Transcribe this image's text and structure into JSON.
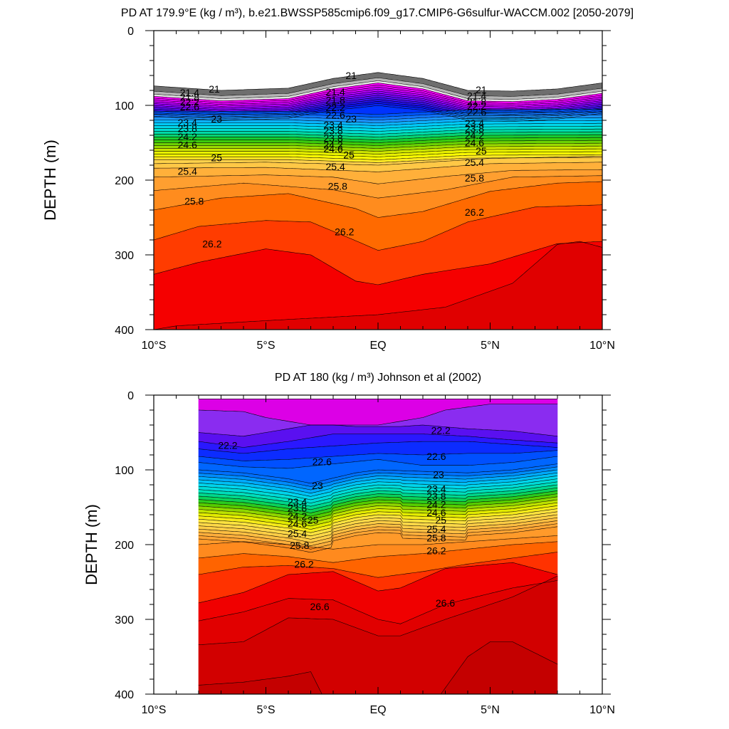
{
  "chart_data": [
    {
      "type": "contour",
      "title": "PD AT 179.9°E (kg / m³), b.e21.BWSSP585cmip6.f09_g17.CMIP6-G6sulfur-WACCM.002 [2050-2079]",
      "ylabel": "DEPTH (m)",
      "xlabel": "",
      "x_tick_labels": [
        "10°S",
        "5°S",
        "EQ",
        "5°N",
        "10°N"
      ],
      "x_ticks": [
        -10,
        -5,
        0,
        5,
        10
      ],
      "y_tick_labels": [
        "0",
        "100",
        "200",
        "300",
        "400"
      ],
      "y_ticks": [
        0,
        100,
        200,
        300,
        400
      ],
      "xlim": [
        -10,
        10
      ],
      "ylim": [
        0,
        400
      ],
      "y_inverted": true,
      "contour_interval": 0.2,
      "levels": [
        21.0,
        21.4,
        21.8,
        22.2,
        22.6,
        23.0,
        23.4,
        23.8,
        24.2,
        24.6,
        25.0,
        25.4,
        25.8,
        26.2
      ],
      "contour_labels": [
        {
          "text": "21",
          "lat": -7.3,
          "depth": 78
        },
        {
          "text": "21",
          "lat": -1.2,
          "depth": 60
        },
        {
          "text": "21",
          "lat": 4.6,
          "depth": 79
        },
        {
          "text": "21.4",
          "lat": -8.4,
          "depth": 83
        },
        {
          "text": "21.8",
          "lat": -8.4,
          "depth": 89
        },
        {
          "text": "22.2",
          "lat": -8.4,
          "depth": 95
        },
        {
          "text": "22.6",
          "lat": -8.4,
          "depth": 102
        },
        {
          "text": "21.4",
          "lat": -1.9,
          "depth": 82
        },
        {
          "text": "21.8",
          "lat": -1.9,
          "depth": 93
        },
        {
          "text": "22.2",
          "lat": -1.9,
          "depth": 103
        },
        {
          "text": "22.6",
          "lat": -1.9,
          "depth": 113
        },
        {
          "text": "23",
          "lat": -1.2,
          "depth": 118
        },
        {
          "text": "21.4",
          "lat": 4.4,
          "depth": 87
        },
        {
          "text": "21.8",
          "lat": 4.4,
          "depth": 95
        },
        {
          "text": "22.2",
          "lat": 4.4,
          "depth": 101
        },
        {
          "text": "22.6",
          "lat": 4.4,
          "depth": 109
        },
        {
          "text": "23",
          "lat": -7.2,
          "depth": 118
        },
        {
          "text": "23.4",
          "lat": -8.5,
          "depth": 123
        },
        {
          "text": "23.8",
          "lat": -8.5,
          "depth": 131
        },
        {
          "text": "24.2",
          "lat": -8.5,
          "depth": 142
        },
        {
          "text": "24.6",
          "lat": -8.5,
          "depth": 153
        },
        {
          "text": "23.4",
          "lat": -2.0,
          "depth": 126
        },
        {
          "text": "23.8",
          "lat": -2.0,
          "depth": 134
        },
        {
          "text": "23.8",
          "lat": -2.0,
          "depth": 144
        },
        {
          "text": "24.2",
          "lat": -2.0,
          "depth": 153
        },
        {
          "text": "24.6",
          "lat": -2.0,
          "depth": 158
        },
        {
          "text": "23.4",
          "lat": 4.3,
          "depth": 124
        },
        {
          "text": "23.8",
          "lat": 4.3,
          "depth": 131
        },
        {
          "text": "24.2",
          "lat": 4.3,
          "depth": 140
        },
        {
          "text": "24.6",
          "lat": 4.3,
          "depth": 150
        },
        {
          "text": "25",
          "lat": -7.2,
          "depth": 170
        },
        {
          "text": "25",
          "lat": -1.3,
          "depth": 166
        },
        {
          "text": "25",
          "lat": 4.6,
          "depth": 161
        },
        {
          "text": "25.4",
          "lat": -8.5,
          "depth": 188
        },
        {
          "text": "25.4",
          "lat": -1.9,
          "depth": 182
        },
        {
          "text": "25.4",
          "lat": 4.3,
          "depth": 176
        },
        {
          "text": "25.8",
          "lat": -8.2,
          "depth": 228
        },
        {
          "text": "25.8",
          "lat": -1.8,
          "depth": 208
        },
        {
          "text": "25.8",
          "lat": 4.3,
          "depth": 197
        },
        {
          "text": "26.2",
          "lat": -7.4,
          "depth": 285
        },
        {
          "text": "26.2",
          "lat": -1.5,
          "depth": 269
        },
        {
          "text": "26.2",
          "lat": 4.3,
          "depth": 243
        }
      ]
    },
    {
      "type": "contour",
      "title": "PD AT 180 (kg / m³) Johnson et al (2002)",
      "ylabel": "DEPTH (m)",
      "xlabel": "",
      "x_tick_labels": [
        "10°S",
        "5°S",
        "EQ",
        "5°N",
        "10°N"
      ],
      "x_ticks": [
        -10,
        -5,
        0,
        5,
        10
      ],
      "y_tick_labels": [
        "0",
        "100",
        "200",
        "300",
        "400"
      ],
      "y_ticks": [
        0,
        100,
        200,
        300,
        400
      ],
      "xlim": [
        -10,
        10
      ],
      "ylim": [
        0,
        400
      ],
      "y_inverted": true,
      "data_extent_lat": [
        -8,
        8
      ],
      "data_extent_depth": [
        5,
        400
      ],
      "contour_interval": 0.2,
      "levels": [
        22.2,
        22.6,
        23.0,
        23.4,
        23.8,
        24.2,
        24.6,
        25.0,
        25.4,
        25.8,
        26.2,
        26.6
      ],
      "contour_labels": [
        {
          "text": "22.2",
          "lat": -6.7,
          "depth": 67
        },
        {
          "text": "22.6",
          "lat": -2.5,
          "depth": 89
        },
        {
          "text": "23",
          "lat": -2.7,
          "depth": 121
        },
        {
          "text": "23.4",
          "lat": -3.6,
          "depth": 143
        },
        {
          "text": "23.8",
          "lat": -3.6,
          "depth": 151
        },
        {
          "text": "24.2",
          "lat": -3.6,
          "depth": 162
        },
        {
          "text": "24.6",
          "lat": -3.6,
          "depth": 172
        },
        {
          "text": "25",
          "lat": -2.9,
          "depth": 167
        },
        {
          "text": "25.4",
          "lat": -3.6,
          "depth": 185
        },
        {
          "text": "25.8",
          "lat": -3.5,
          "depth": 201
        },
        {
          "text": "26.2",
          "lat": -3.3,
          "depth": 226
        },
        {
          "text": "22.2",
          "lat": 2.8,
          "depth": 47
        },
        {
          "text": "22.6",
          "lat": 2.6,
          "depth": 82
        },
        {
          "text": "23",
          "lat": 2.7,
          "depth": 106
        },
        {
          "text": "23.4",
          "lat": 2.6,
          "depth": 125
        },
        {
          "text": "23.8",
          "lat": 2.6,
          "depth": 135
        },
        {
          "text": "24.2",
          "lat": 2.6,
          "depth": 146
        },
        {
          "text": "24.6",
          "lat": 2.6,
          "depth": 157
        },
        {
          "text": "25",
          "lat": 2.8,
          "depth": 167
        },
        {
          "text": "25.4",
          "lat": 2.6,
          "depth": 179
        },
        {
          "text": "25.8",
          "lat": 2.6,
          "depth": 191
        },
        {
          "text": "26.2",
          "lat": 2.6,
          "depth": 208
        },
        {
          "text": "26.6",
          "lat": -2.6,
          "depth": 283
        },
        {
          "text": "26.6",
          "lat": 3.0,
          "depth": 278
        }
      ]
    }
  ]
}
